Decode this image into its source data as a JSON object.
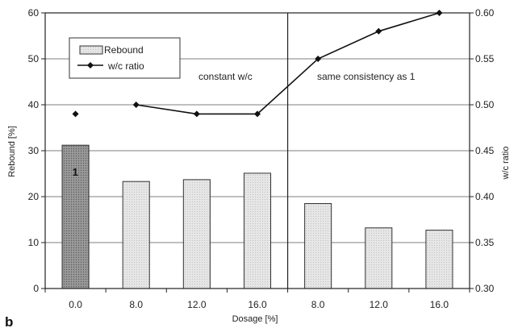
{
  "chart_data": {
    "type": "bar",
    "categories": [
      "0.0",
      "8.0",
      "12.0",
      "16.0",
      "8.0",
      "12.0",
      "16.0"
    ],
    "series": [
      {
        "name": "Rebound",
        "type": "bar",
        "axis": "left",
        "values": [
          31.2,
          23.3,
          23.7,
          25.1,
          18.5,
          13.2,
          12.7
        ]
      },
      {
        "name": "w/c ratio",
        "type": "line",
        "axis": "right",
        "values": [
          0.49,
          0.5,
          0.49,
          0.49,
          0.55,
          0.58,
          0.6
        ]
      }
    ],
    "line_segments": [
      [
        1,
        6
      ]
    ],
    "xlabel": "Dosage [%]",
    "ylabel": "Rebound [%]",
    "y2label": "w/c ratio",
    "ylim": [
      0,
      60
    ],
    "y2lim": [
      0.3,
      0.6
    ],
    "yticks": [
      "0",
      "10",
      "20",
      "30",
      "40",
      "50",
      "60"
    ],
    "y2ticks": [
      "0.30",
      "0.35",
      "0.40",
      "0.45",
      "0.50",
      "0.55",
      "0.60"
    ],
    "grid": true,
    "legend_position": "top-left",
    "annotations": {
      "left_region": "constant w/c",
      "right_region": "same consistency as 1",
      "bar_label": "1",
      "panel_label": "b"
    },
    "colors": {
      "bar_fill": "#e3e3e3",
      "bar_highlight": "#8f8f8f",
      "line": "#111111"
    }
  }
}
